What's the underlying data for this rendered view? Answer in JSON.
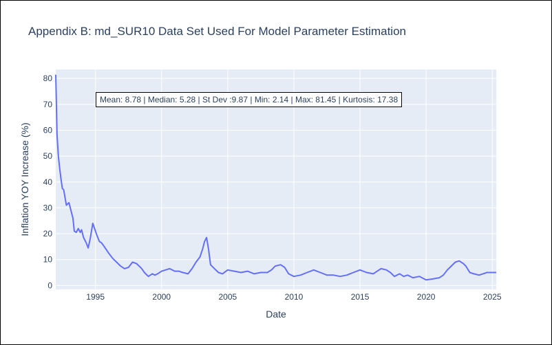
{
  "chart_data": {
    "type": "line",
    "title": "Appendix B: md_SUR10 Data Set Used For Model Parameter Estimation",
    "xlabel": "Date",
    "ylabel": "Inflation YOY Increase (%)",
    "annotation": "Mean: 8.78 | Median: 5.28 | St Dev :9.87 | Min: 2.14 | Max: 81.45 | Kurtosis: 17.38",
    "xlim": [
      1992.0,
      2025.3
    ],
    "ylim": [
      -1.5,
      83.5
    ],
    "x_ticks": [
      1995,
      2000,
      2005,
      2010,
      2015,
      2020,
      2025
    ],
    "y_ticks": [
      0,
      10,
      20,
      30,
      40,
      50,
      60,
      70,
      80
    ],
    "grid": true,
    "line_color": "#636efa",
    "plot_bgcolor": "#e5ecf6",
    "series": [
      {
        "x": [
          1992.0,
          1992.1,
          1992.2,
          1992.3,
          1992.4,
          1992.5,
          1992.6,
          1992.7,
          1992.8,
          1993.0,
          1993.15,
          1993.3,
          1993.4,
          1993.55,
          1993.7,
          1993.85,
          1993.95,
          1994.1,
          1994.3,
          1994.45,
          1994.6,
          1994.8,
          1995.0,
          1995.1,
          1995.3,
          1995.45,
          1995.6,
          1995.8,
          1996.0,
          1996.3,
          1996.6,
          1996.9,
          1997.2,
          1997.5,
          1997.8,
          1998.1,
          1998.3,
          1998.5,
          1998.7,
          1999.0,
          1999.3,
          1999.5,
          1999.7,
          2000.0,
          2000.3,
          2000.6,
          2001.0,
          2001.3,
          2001.6,
          2002.0,
          2002.3,
          2002.6,
          2002.9,
          2003.1,
          2003.25,
          2003.4,
          2003.55,
          2003.7,
          2004.0,
          2004.3,
          2004.6,
          2005.0,
          2005.5,
          2006.0,
          2006.5,
          2007.0,
          2007.5,
          2008.0,
          2008.3,
          2008.6,
          2009.0,
          2009.3,
          2009.6,
          2010.0,
          2010.5,
          2011.0,
          2011.5,
          2012.0,
          2012.5,
          2013.0,
          2013.5,
          2014.0,
          2014.5,
          2015.0,
          2015.5,
          2016.0,
          2016.3,
          2016.6,
          2017.0,
          2017.3,
          2017.6,
          2018.0,
          2018.3,
          2018.6,
          2019.0,
          2019.5,
          2020.0,
          2020.5,
          2021.0,
          2021.3,
          2021.6,
          2021.9,
          2022.2,
          2022.5,
          2022.8,
          2023.0,
          2023.3,
          2023.6,
          2024.0,
          2024.3,
          2024.6,
          2025.0,
          2025.3
        ],
        "y": [
          81.45,
          58,
          50,
          45,
          41,
          37.5,
          37,
          34,
          31,
          32,
          29,
          26,
          21,
          20.5,
          22,
          20.5,
          21.5,
          18.5,
          16.5,
          14.5,
          18,
          24,
          21,
          19.5,
          17,
          16.5,
          15.5,
          14,
          12.5,
          10.5,
          9,
          7.5,
          6.5,
          7,
          9,
          8.5,
          7.5,
          6.5,
          5,
          3.5,
          4.5,
          4,
          4.5,
          5.5,
          6,
          6.5,
          5.5,
          5.5,
          5,
          4.5,
          6.5,
          9,
          11,
          14,
          17,
          18.5,
          14,
          8,
          6.5,
          5,
          4.5,
          6,
          5.5,
          5,
          5.5,
          4.5,
          5,
          5,
          6,
          7.5,
          8,
          7,
          4.5,
          3.5,
          4,
          5,
          6,
          5,
          4,
          4,
          3.5,
          4,
          5,
          6,
          5,
          4.5,
          5.5,
          6.5,
          6,
          5,
          3.5,
          4.5,
          3.5,
          4,
          3,
          3.5,
          2.14,
          2.5,
          3,
          4,
          6,
          7.5,
          9,
          9.5,
          8.5,
          7.5,
          5,
          4.5,
          4,
          4.5,
          5,
          5,
          5
        ]
      }
    ]
  }
}
